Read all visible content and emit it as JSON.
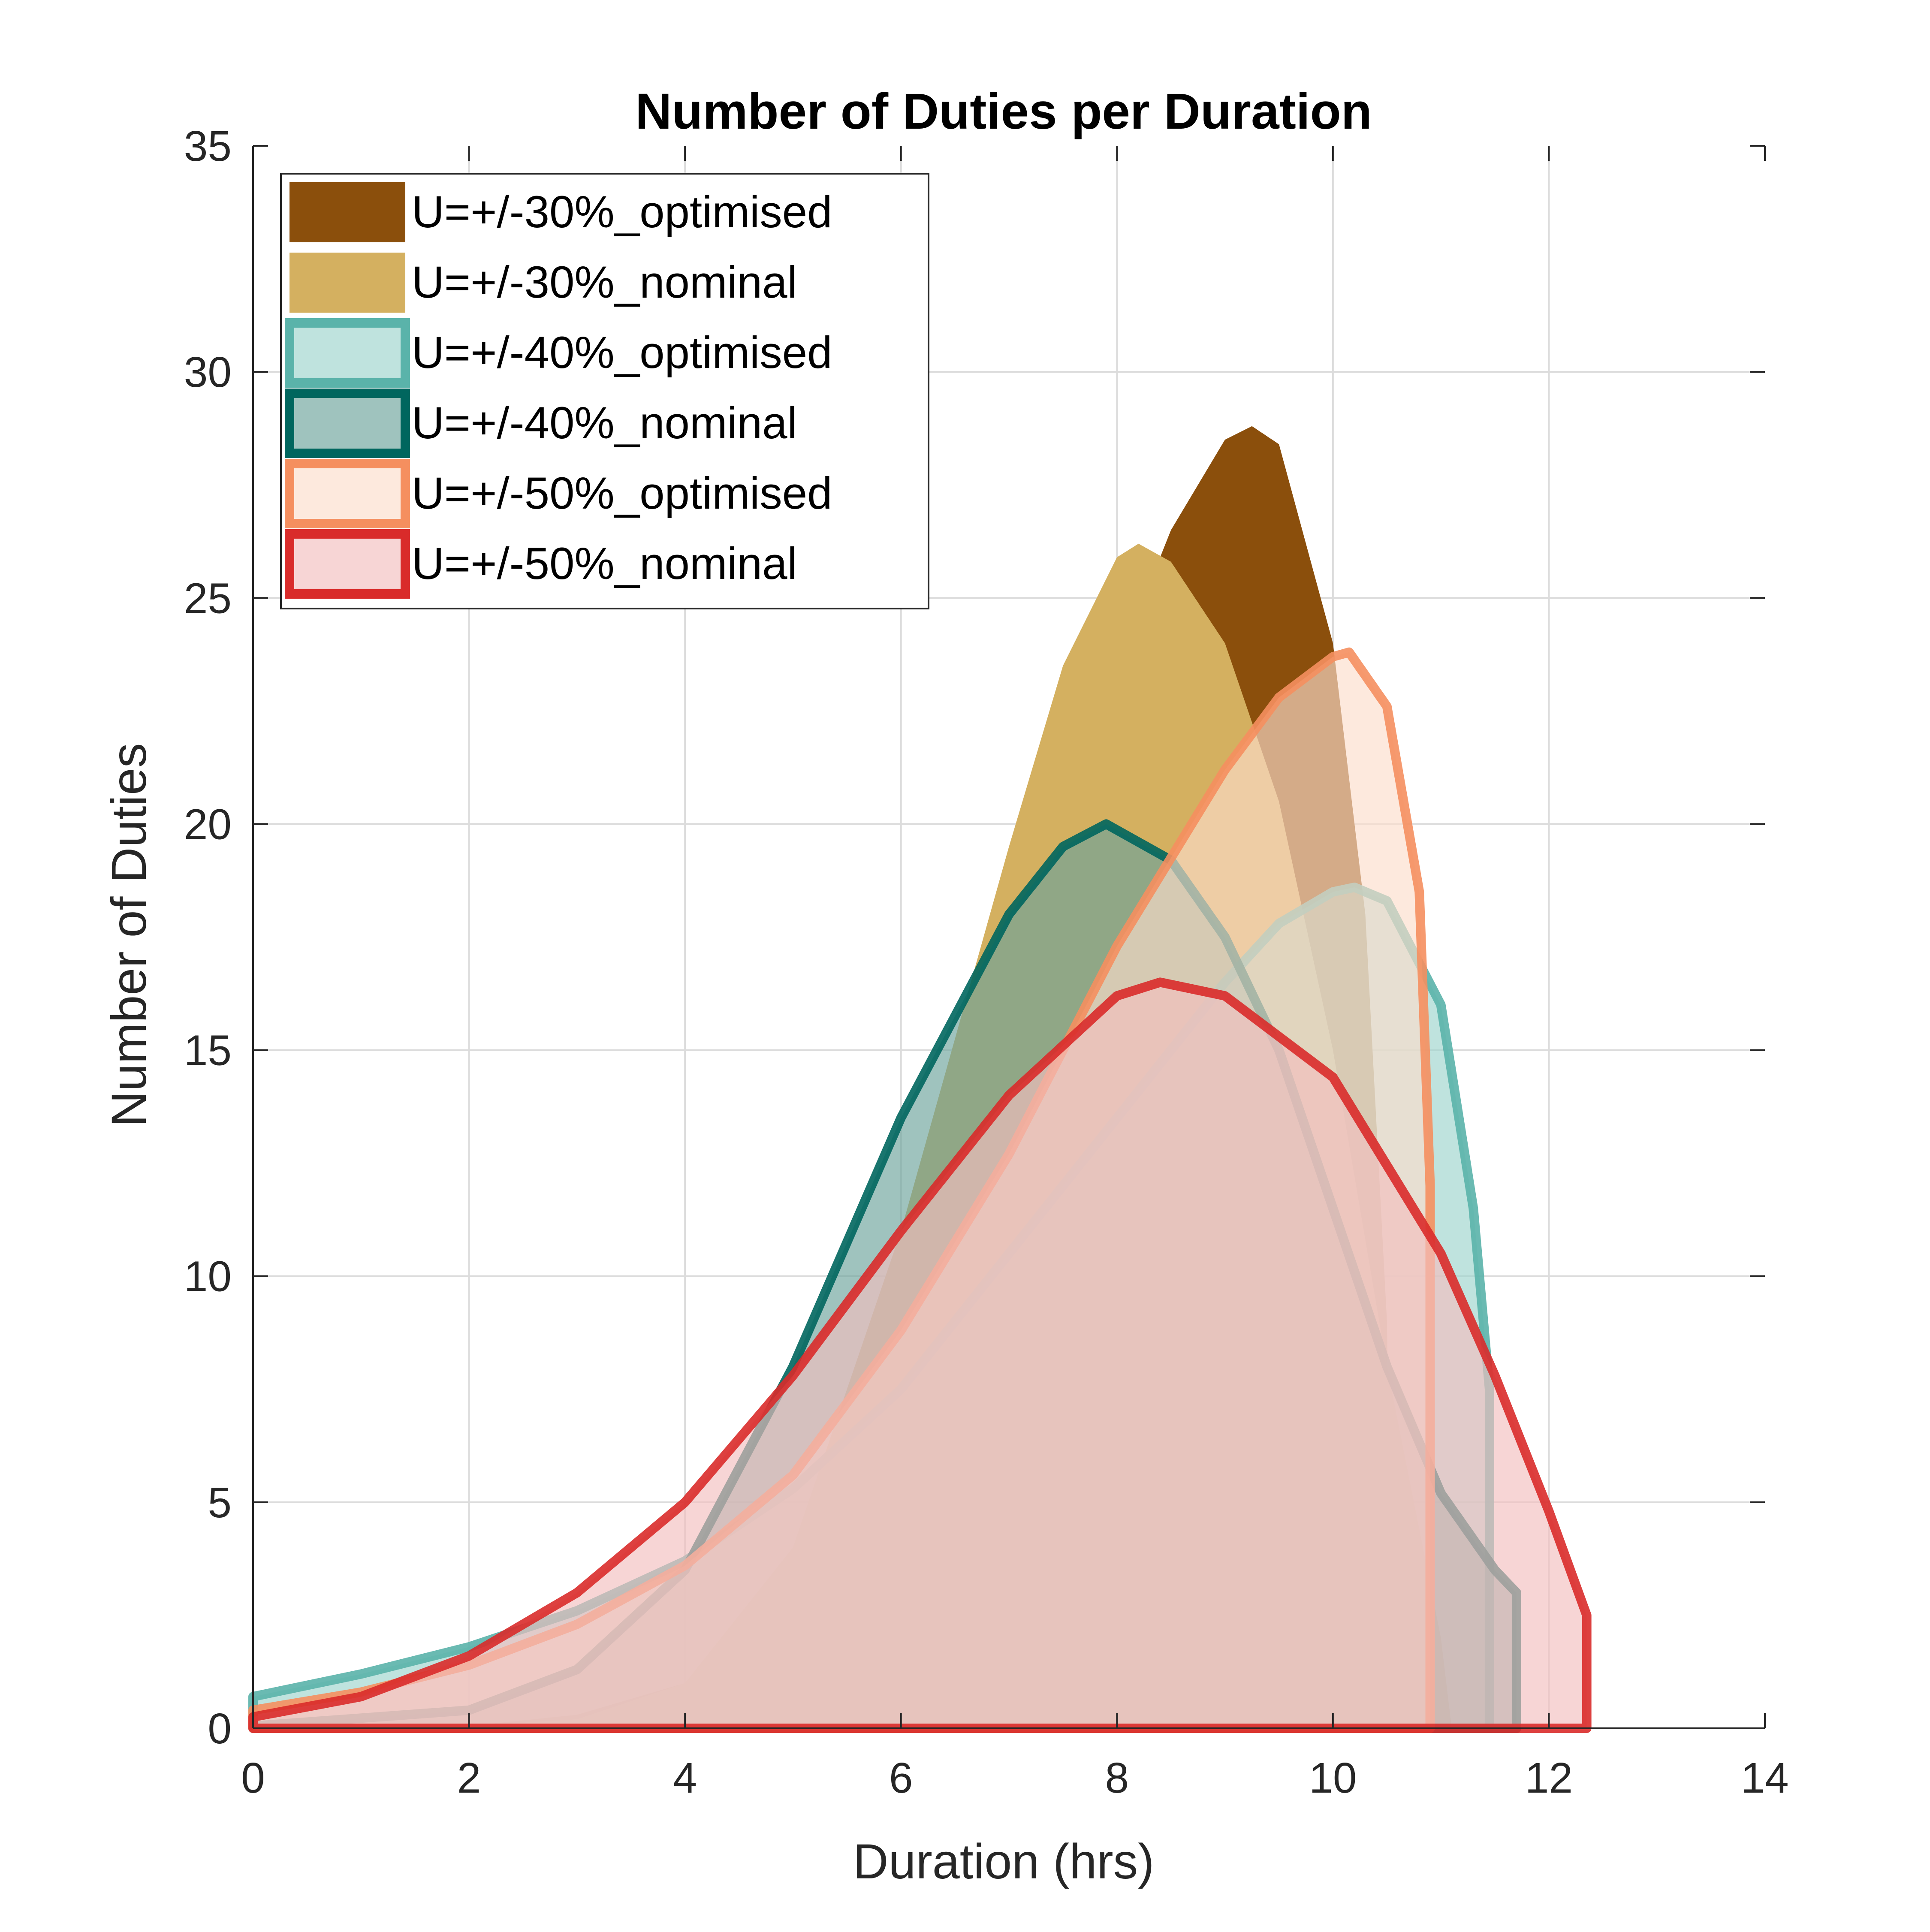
{
  "chart_data": {
    "type": "area",
    "title": "Number of Duties per Duration",
    "xlabel": "Duration (hrs)",
    "ylabel": "Number of Duties",
    "xlim": [
      0,
      14
    ],
    "ylim": [
      0,
      35
    ],
    "xticks": [
      "0",
      "2",
      "4",
      "6",
      "8",
      "10",
      "12",
      "14"
    ],
    "yticks": [
      "0",
      "5",
      "10",
      "15",
      "20",
      "25",
      "30",
      "35"
    ],
    "grid": true,
    "legend_position": "top-left",
    "series": [
      {
        "name": "U=+/-30%_optimised",
        "fill_color": "#8B4F0C",
        "line_color": "#8B4F0C",
        "points": [
          [
            0,
            0.02
          ],
          [
            2,
            0.05
          ],
          [
            3,
            0.3
          ],
          [
            4,
            1.0
          ],
          [
            5,
            3.5
          ],
          [
            6,
            8.5
          ],
          [
            7,
            16.0
          ],
          [
            8,
            23.5
          ],
          [
            8.5,
            26.5
          ],
          [
            9,
            28.5
          ],
          [
            9.25,
            28.8
          ],
          [
            9.5,
            28.4
          ],
          [
            10,
            24.0
          ],
          [
            10.3,
            18.0
          ],
          [
            10.5,
            9.0
          ],
          [
            10.55,
            0.0
          ]
        ]
      },
      {
        "name": "U=+/-30%_nominal",
        "fill_color": "#D4B060",
        "line_color": "#D4B060",
        "points": [
          [
            0,
            0.0
          ],
          [
            2,
            0.05
          ],
          [
            3,
            0.2
          ],
          [
            4,
            1.0
          ],
          [
            5,
            4.0
          ],
          [
            6,
            11.0
          ],
          [
            7,
            19.5
          ],
          [
            7.5,
            23.5
          ],
          [
            8,
            25.9
          ],
          [
            8.2,
            26.2
          ],
          [
            8.5,
            25.8
          ],
          [
            9,
            24.0
          ],
          [
            9.5,
            20.5
          ],
          [
            10,
            15.0
          ],
          [
            10.5,
            8.0
          ],
          [
            11,
            2.0
          ],
          [
            11.1,
            0.0
          ]
        ]
      },
      {
        "name": "U=+/-40%_optimised",
        "fill_color": "#9DD4CC",
        "line_color": "#5AB3AA",
        "points": [
          [
            0,
            0.7
          ],
          [
            1,
            1.2
          ],
          [
            2,
            1.8
          ],
          [
            3,
            2.6
          ],
          [
            4,
            3.7
          ],
          [
            5,
            5.3
          ],
          [
            6,
            7.5
          ],
          [
            7,
            10.5
          ],
          [
            8,
            13.5
          ],
          [
            9,
            16.5
          ],
          [
            9.5,
            17.8
          ],
          [
            10,
            18.5
          ],
          [
            10.2,
            18.6
          ],
          [
            10.5,
            18.3
          ],
          [
            11,
            16.0
          ],
          [
            11.3,
            11.5
          ],
          [
            11.45,
            7.5
          ],
          [
            11.45,
            0.0
          ]
        ]
      },
      {
        "name": "U=+/-40%_nominal",
        "fill_color": "#6BA39B",
        "line_color": "#00665E",
        "points": [
          [
            0,
            0.05
          ],
          [
            2,
            0.4
          ],
          [
            3,
            1.3
          ],
          [
            4,
            3.5
          ],
          [
            5,
            8.0
          ],
          [
            6,
            13.5
          ],
          [
            7,
            18.0
          ],
          [
            7.5,
            19.5
          ],
          [
            7.9,
            20.0
          ],
          [
            8.5,
            19.2
          ],
          [
            9,
            17.5
          ],
          [
            9.5,
            15.0
          ],
          [
            10,
            11.5
          ],
          [
            10.5,
            8.0
          ],
          [
            11,
            5.2
          ],
          [
            11.5,
            3.5
          ],
          [
            11.7,
            3.0
          ],
          [
            11.7,
            0.0
          ]
        ]
      },
      {
        "name": "U=+/-50%_optimised",
        "fill_color": "#FCDDCB",
        "line_color": "#F58F5F",
        "points": [
          [
            0,
            0.4
          ],
          [
            1,
            0.8
          ],
          [
            2,
            1.4
          ],
          [
            3,
            2.3
          ],
          [
            4,
            3.6
          ],
          [
            5,
            5.6
          ],
          [
            6,
            8.8
          ],
          [
            7,
            12.7
          ],
          [
            8,
            17.3
          ],
          [
            9,
            21.2
          ],
          [
            9.5,
            22.8
          ],
          [
            10,
            23.7
          ],
          [
            10.15,
            23.8
          ],
          [
            10.5,
            22.6
          ],
          [
            10.8,
            18.5
          ],
          [
            10.9,
            12.0
          ],
          [
            10.9,
            0.0
          ]
        ]
      },
      {
        "name": "U=+/-50%_nominal",
        "fill_color": "#F2BEBE",
        "line_color": "#D92B2A",
        "points": [
          [
            0,
            0.25
          ],
          [
            1,
            0.7
          ],
          [
            2,
            1.6
          ],
          [
            3,
            3.0
          ],
          [
            4,
            5.0
          ],
          [
            5,
            7.8
          ],
          [
            6,
            11.0
          ],
          [
            7,
            14.0
          ],
          [
            8,
            16.2
          ],
          [
            8.4,
            16.5
          ],
          [
            9,
            16.2
          ],
          [
            10,
            14.4
          ],
          [
            11,
            10.5
          ],
          [
            11.5,
            7.8
          ],
          [
            12,
            4.8
          ],
          [
            12.35,
            2.5
          ],
          [
            12.35,
            0.0
          ]
        ]
      }
    ]
  }
}
